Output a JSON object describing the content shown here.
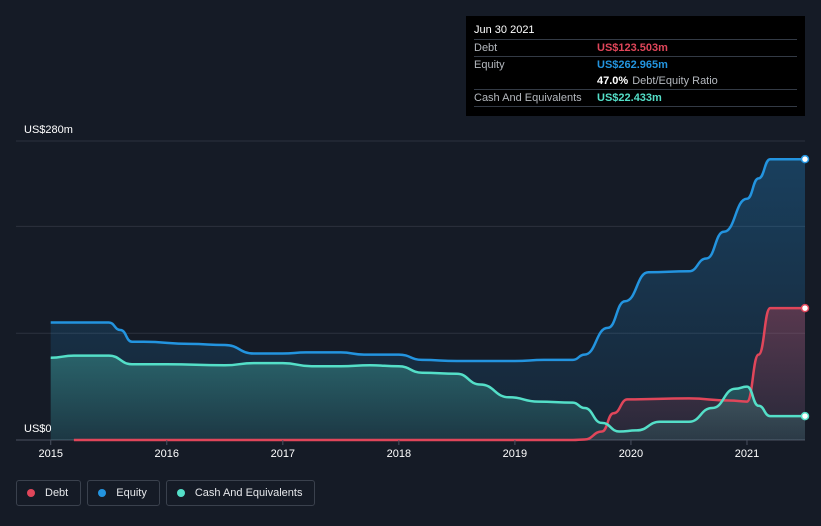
{
  "chart_data": {
    "type": "area",
    "y_top_label": "US$280m",
    "y_bottom_label": "US$0",
    "ylim": [
      0,
      280
    ],
    "xlim": [
      2014.985,
      2021.5
    ],
    "x_ticks": [
      "2015",
      "2016",
      "2017",
      "2018",
      "2019",
      "2020",
      "2021"
    ],
    "grid": true,
    "series": [
      {
        "name": "Debt",
        "color": "#e0465a",
        "x": [
          2015.2,
          2019.25,
          2019.5,
          2019.6,
          2019.75,
          2019.85,
          2019.97,
          2020.5,
          2020.85,
          2021.0,
          2021.1,
          2021.2,
          2021.5
        ],
        "y": [
          0,
          0,
          0,
          0.5,
          8,
          25,
          38,
          39,
          37,
          36,
          80,
          123.5,
          123.5
        ]
      },
      {
        "name": "Equity",
        "color": "#2394df",
        "x": [
          2015.0,
          2015.3,
          2015.5,
          2015.6,
          2015.7,
          2015.8,
          2016.2,
          2016.5,
          2016.75,
          2017.0,
          2017.2,
          2017.5,
          2017.7,
          2018.0,
          2018.2,
          2018.5,
          2019.0,
          2019.25,
          2019.5,
          2019.6,
          2019.8,
          2019.95,
          2020.15,
          2020.5,
          2020.65,
          2020.8,
          2021.0,
          2021.1,
          2021.2,
          2021.5
        ],
        "y": [
          110,
          110,
          110,
          103,
          92,
          92,
          90,
          89,
          81,
          81,
          82,
          82,
          80,
          80,
          75,
          74,
          74,
          75,
          75,
          80,
          105,
          130,
          157,
          158,
          170,
          195,
          226,
          245,
          263,
          263
        ]
      },
      {
        "name": "Cash And Equivalents",
        "color": "#54dfc8",
        "x": [
          2015.0,
          2015.2,
          2015.5,
          2015.7,
          2016.0,
          2016.5,
          2016.75,
          2017.0,
          2017.25,
          2017.5,
          2017.75,
          2018.0,
          2018.2,
          2018.5,
          2018.7,
          2018.95,
          2019.2,
          2019.5,
          2019.6,
          2019.75,
          2019.9,
          2020.05,
          2020.25,
          2020.5,
          2020.7,
          2020.9,
          2021.0,
          2021.1,
          2021.2,
          2021.5
        ],
        "y": [
          77,
          79,
          79,
          71,
          71,
          70,
          72,
          72,
          69,
          69,
          70,
          69,
          63,
          62,
          52,
          40,
          36,
          35,
          30,
          16,
          8,
          9,
          17,
          17,
          30,
          48,
          50,
          32,
          22.4,
          22.4
        ]
      }
    ]
  },
  "tooltip": {
    "date": "Jun 30 2021",
    "debt_label": "Debt",
    "debt_value": "US$123.503m",
    "equity_label": "Equity",
    "equity_value": "US$262.965m",
    "ratio_value": "47.0%",
    "ratio_label": "Debt/Equity Ratio",
    "cash_label": "Cash And Equivalents",
    "cash_value": "US$22.433m"
  },
  "legend": {
    "debt": "Debt",
    "equity": "Equity",
    "cash": "Cash And Equivalents"
  }
}
